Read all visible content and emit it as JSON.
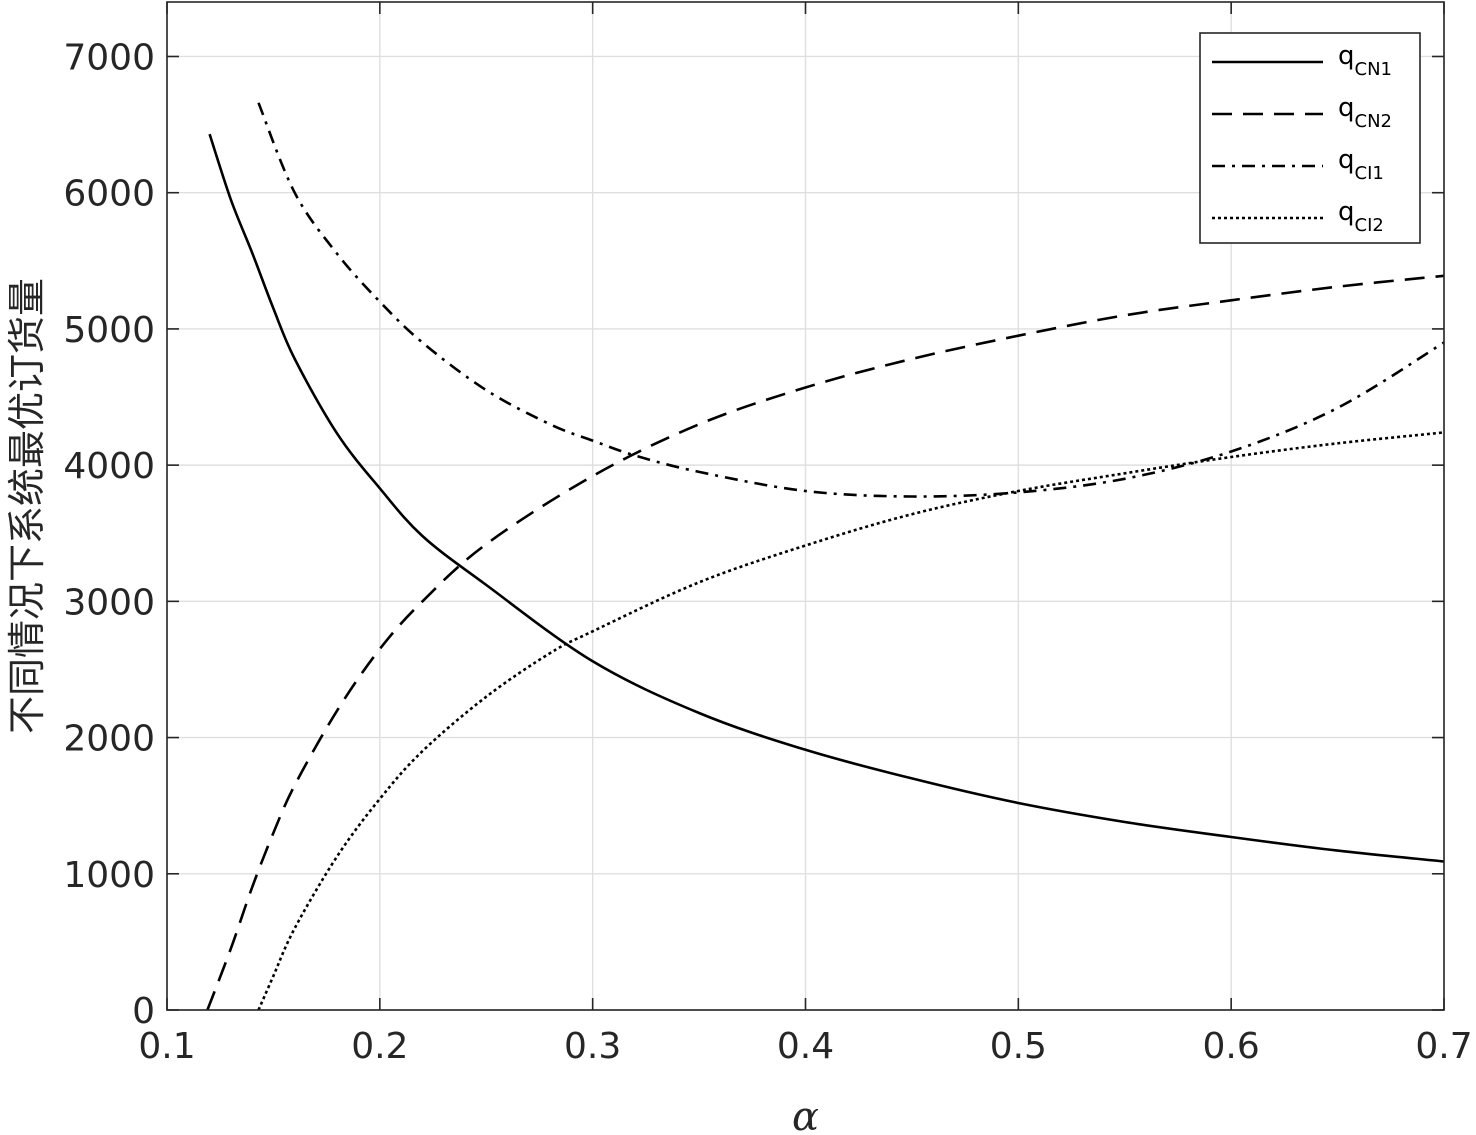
{
  "chart_data": {
    "type": "line",
    "xlabel": "α",
    "ylabel": "不同情况下系统最优订货量",
    "xlim": [
      0.1,
      0.7
    ],
    "ylim": [
      0,
      7400
    ],
    "xticks": [
      0.1,
      0.2,
      0.3,
      0.4,
      0.5,
      0.6,
      0.7
    ],
    "xtick_labels": [
      "0.1",
      "0.2",
      "0.3",
      "0.4",
      "0.5",
      "0.6",
      "0.7"
    ],
    "yticks": [
      0,
      1000,
      2000,
      3000,
      4000,
      5000,
      6000,
      7000
    ],
    "ytick_labels": [
      "0",
      "1000",
      "2000",
      "3000",
      "4000",
      "5000",
      "6000",
      "7000"
    ],
    "grid": true,
    "legend_position": "top-right",
    "series": [
      {
        "name_main": "q",
        "name_sub": "CN1",
        "style": "solid",
        "x": [
          0.12,
          0.13,
          0.14,
          0.15,
          0.16,
          0.18,
          0.2,
          0.22,
          0.25,
          0.3,
          0.35,
          0.4,
          0.45,
          0.5,
          0.55,
          0.6,
          0.65,
          0.7
        ],
        "y": [
          6430,
          5950,
          5560,
          5150,
          4780,
          4230,
          3830,
          3480,
          3120,
          2560,
          2180,
          1910,
          1700,
          1520,
          1380,
          1270,
          1170,
          1090
        ]
      },
      {
        "name_main": "q",
        "name_sub": "CN2",
        "style": "dashed",
        "x": [
          0.119,
          0.13,
          0.14,
          0.15,
          0.16,
          0.18,
          0.2,
          0.22,
          0.25,
          0.3,
          0.35,
          0.4,
          0.45,
          0.5,
          0.55,
          0.6,
          0.65,
          0.7
        ],
        "y": [
          0,
          450,
          900,
          1300,
          1650,
          2200,
          2650,
          3000,
          3420,
          3920,
          4300,
          4570,
          4780,
          4950,
          5100,
          5210,
          5310,
          5390
        ]
      },
      {
        "name_main": "q",
        "name_sub": "CI1",
        "style": "dashdot",
        "x": [
          0.143,
          0.16,
          0.18,
          0.2,
          0.22,
          0.25,
          0.28,
          0.3,
          0.32,
          0.35,
          0.4,
          0.45,
          0.5,
          0.55,
          0.6,
          0.65,
          0.7
        ],
        "y": [
          6660,
          6000,
          5550,
          5200,
          4900,
          4550,
          4300,
          4180,
          4070,
          3950,
          3810,
          3770,
          3800,
          3900,
          4100,
          4420,
          4900
        ]
      },
      {
        "name_main": "q",
        "name_sub": "CI2",
        "style": "dotted",
        "x": [
          0.143,
          0.15,
          0.16,
          0.18,
          0.2,
          0.22,
          0.25,
          0.28,
          0.3,
          0.35,
          0.4,
          0.45,
          0.5,
          0.55,
          0.6,
          0.65,
          0.7
        ],
        "y": [
          0,
          250,
          600,
          1130,
          1550,
          1900,
          2300,
          2620,
          2780,
          3140,
          3410,
          3640,
          3810,
          3940,
          4060,
          4160,
          4240
        ]
      }
    ]
  }
}
